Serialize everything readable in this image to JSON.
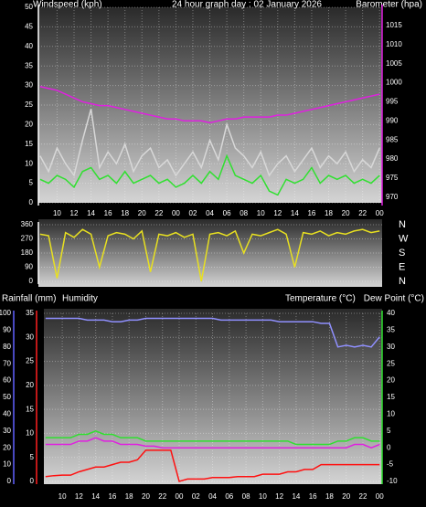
{
  "chart_data": [
    {
      "type": "line",
      "title": "24 hour graph day : 02 January 2026",
      "ylabel": "Windspeed (kph)",
      "y2label": "Barometer (hpa)",
      "x": [
        -2,
        -1,
        0,
        1,
        2,
        3,
        4,
        5,
        6,
        7,
        8,
        9,
        10,
        11,
        12,
        13,
        14,
        15,
        16,
        17,
        18,
        19,
        20,
        21,
        22,
        23,
        24,
        25,
        26,
        27,
        28,
        29,
        30,
        31,
        32,
        33,
        34,
        35,
        36,
        37,
        38
      ],
      "xlim": [
        -2.2,
        38.3
      ],
      "xticks": [
        {
          "value": 0,
          "label": "10"
        },
        {
          "value": 2,
          "label": "12"
        },
        {
          "value": 4,
          "label": "14"
        },
        {
          "value": 6,
          "label": "16"
        },
        {
          "value": 8,
          "label": "18"
        },
        {
          "value": 10,
          "label": "20"
        },
        {
          "value": 12,
          "label": "22"
        },
        {
          "value": 14,
          "label": "00"
        },
        {
          "value": 16,
          "label": "02"
        },
        {
          "value": 18,
          "label": "04"
        },
        {
          "value": 20,
          "label": "06"
        },
        {
          "value": 22,
          "label": "08"
        },
        {
          "value": 24,
          "label": "10"
        },
        {
          "value": 26,
          "label": "12"
        },
        {
          "value": 28,
          "label": "14"
        },
        {
          "value": 30,
          "label": "16"
        },
        {
          "value": 32,
          "label": "18"
        },
        {
          "value": 34,
          "label": "20"
        },
        {
          "value": 36,
          "label": "22"
        },
        {
          "value": 38,
          "label": "00"
        }
      ],
      "ylim": [
        0,
        50
      ],
      "yticks": [
        0,
        5,
        10,
        15,
        20,
        25,
        30,
        35,
        40,
        45,
        50
      ],
      "ytick_color": "#ffffff",
      "y2lim": [
        968.5,
        1019.8
      ],
      "y2ticks": [
        970,
        975,
        980,
        985,
        990,
        995,
        1000,
        1005,
        1010,
        1015
      ],
      "y2tick_color": "#e020e0",
      "grid": true,
      "series": [
        {
          "color": "#d8d8d8",
          "values": [
            12,
            8,
            14,
            10,
            7,
            16,
            24,
            9,
            13,
            10,
            15,
            8,
            12,
            14,
            9,
            11,
            7,
            10,
            13,
            9,
            16,
            11,
            20,
            14,
            12,
            9,
            13,
            7,
            10,
            12,
            8,
            11,
            14,
            9,
            12,
            10,
            13,
            8,
            11,
            9,
            14
          ]
        },
        {
          "color": "#30e030",
          "values": [
            6,
            5,
            7,
            6,
            4,
            8,
            9,
            6,
            7,
            5,
            8,
            5,
            6,
            7,
            5,
            6,
            4,
            5,
            7,
            5,
            8,
            6,
            12,
            7,
            6,
            5,
            7,
            3,
            2,
            6,
            5,
            6,
            9,
            5,
            7,
            6,
            7,
            5,
            6,
            5,
            7
          ]
        },
        {
          "color": "#e020e0",
          "axis": "y2",
          "values": [
            999,
            998.5,
            998,
            997,
            996,
            995,
            994.5,
            994,
            994,
            993.5,
            993,
            992.5,
            992,
            991.5,
            991,
            990.5,
            990.5,
            990,
            990,
            990,
            989.5,
            990,
            990.5,
            990.5,
            991,
            991,
            991,
            991,
            991.5,
            991.5,
            992,
            992.5,
            993,
            993.5,
            994,
            994.5,
            995,
            995.5,
            996,
            996.5,
            997
          ]
        }
      ]
    },
    {
      "type": "line",
      "x": [
        -2,
        -1,
        0,
        1,
        2,
        3,
        4,
        5,
        6,
        7,
        8,
        9,
        10,
        11,
        12,
        13,
        14,
        15,
        16,
        17,
        18,
        19,
        20,
        21,
        22,
        23,
        24,
        25,
        26,
        27,
        28,
        29,
        30,
        31,
        32,
        33,
        34,
        35,
        36,
        37,
        38
      ],
      "xlim": [
        -2.2,
        38.3
      ],
      "ylim": [
        0,
        360
      ],
      "yticks": [
        0,
        90,
        180,
        270,
        360
      ],
      "ytick_color": "#ffffff",
      "y2lim": [
        0,
        360
      ],
      "y2ticks": [
        {
          "value": 360,
          "label": "N"
        },
        {
          "value": 270,
          "label": "W"
        },
        {
          "value": 180,
          "label": "S"
        },
        {
          "value": 90,
          "label": "E"
        },
        {
          "value": 0,
          "label": "N"
        }
      ],
      "y2tick_color": "#ffffff",
      "grid": true,
      "series": [
        {
          "color": "#e8e020",
          "values": [
            300,
            290,
            20,
            310,
            280,
            330,
            300,
            90,
            290,
            310,
            300,
            270,
            320,
            60,
            300,
            290,
            310,
            280,
            300,
            0,
            300,
            310,
            290,
            320,
            180,
            300,
            290,
            310,
            330,
            300,
            90,
            310,
            300,
            320,
            290,
            310,
            300,
            320,
            330,
            310,
            320
          ]
        }
      ]
    },
    {
      "type": "line",
      "ylabel": "Rainfall (mm)",
      "y3label": "Humidity",
      "y2labels": [
        "Temperature (°C)",
        "Dew Point (°C)"
      ],
      "x": [
        -2,
        -1,
        0,
        1,
        2,
        3,
        4,
        5,
        6,
        7,
        8,
        9,
        10,
        11,
        12,
        13,
        14,
        15,
        16,
        17,
        18,
        19,
        20,
        21,
        22,
        23,
        24,
        25,
        26,
        27,
        28,
        29,
        30,
        31,
        32,
        33,
        34,
        35,
        36,
        37,
        38
      ],
      "xlim": [
        -2.2,
        38.3
      ],
      "xticks": [
        {
          "value": 0,
          "label": "10"
        },
        {
          "value": 2,
          "label": "12"
        },
        {
          "value": 4,
          "label": "14"
        },
        {
          "value": 6,
          "label": "16"
        },
        {
          "value": 8,
          "label": "18"
        },
        {
          "value": 10,
          "label": "20"
        },
        {
          "value": 12,
          "label": "22"
        },
        {
          "value": 14,
          "label": "00"
        },
        {
          "value": 16,
          "label": "02"
        },
        {
          "value": 18,
          "label": "04"
        },
        {
          "value": 20,
          "label": "06"
        },
        {
          "value": 22,
          "label": "08"
        },
        {
          "value": 24,
          "label": "10"
        },
        {
          "value": 26,
          "label": "12"
        },
        {
          "value": 28,
          "label": "14"
        },
        {
          "value": 30,
          "label": "16"
        },
        {
          "value": 32,
          "label": "18"
        },
        {
          "value": 34,
          "label": "20"
        },
        {
          "value": 36,
          "label": "22"
        },
        {
          "value": 38,
          "label": "00"
        }
      ],
      "ylim": [
        0,
        35
      ],
      "yticks": [
        0,
        5,
        10,
        15,
        20,
        25,
        30,
        35
      ],
      "ytick_color": "#ff2020",
      "y3lim": [
        0,
        100
      ],
      "y3ticks": [
        0,
        10,
        20,
        30,
        40,
        50,
        60,
        70,
        80,
        90,
        100
      ],
      "y3tick_color": "#6060ff",
      "y2lim": [
        -10,
        40
      ],
      "y2ticks": [
        -10,
        -5,
        0,
        5,
        10,
        15,
        20,
        25,
        30,
        35,
        40
      ],
      "y2tick_color": "#30e030",
      "grid": true,
      "series": [
        {
          "color": "#9090ff",
          "axis": "y3",
          "values": [
            97,
            97,
            97,
            97,
            97,
            96,
            96,
            96,
            95,
            95,
            96,
            96,
            97,
            97,
            97,
            97,
            97,
            97,
            97,
            97,
            97,
            96,
            96,
            96,
            96,
            96,
            96,
            96,
            95,
            95,
            95,
            95,
            95,
            94,
            94,
            80,
            81,
            80,
            81,
            80,
            86
          ]
        },
        {
          "color": "#30e030",
          "axis": "y2",
          "values": [
            3,
            3,
            3,
            3,
            4,
            4,
            5,
            4,
            4,
            3,
            3,
            3,
            2,
            2,
            2,
            2,
            2,
            2,
            2,
            2,
            2,
            2,
            2,
            2,
            2,
            2,
            2,
            2,
            2,
            2,
            1,
            1,
            1,
            1,
            1,
            2,
            2,
            3,
            3,
            2,
            2
          ]
        },
        {
          "color": "#e020e0",
          "axis": "y2",
          "values": [
            1,
            1,
            1,
            1,
            2,
            2,
            3,
            2,
            2,
            1,
            1,
            1,
            0.5,
            0.5,
            0,
            0,
            0,
            0,
            0,
            0,
            0,
            0,
            0,
            0,
            0,
            0,
            0,
            0,
            0,
            0,
            0,
            0,
            0,
            0,
            0,
            0,
            0,
            1,
            1,
            0,
            1
          ]
        },
        {
          "color": "#ff1010",
          "values": [
            1,
            1.2,
            1.3,
            1.3,
            2,
            2.5,
            3,
            3,
            3.5,
            4,
            4,
            4.5,
            6.5,
            6.5,
            6.5,
            6.5,
            0,
            0.5,
            0.5,
            0.5,
            0.8,
            0.8,
            0.8,
            1,
            1,
            1,
            1.5,
            1.5,
            1.5,
            2,
            2,
            2.5,
            2.5,
            3.5,
            3.5,
            3.5,
            3.5,
            3.5,
            3.5,
            3.5,
            3.5
          ]
        }
      ]
    }
  ]
}
